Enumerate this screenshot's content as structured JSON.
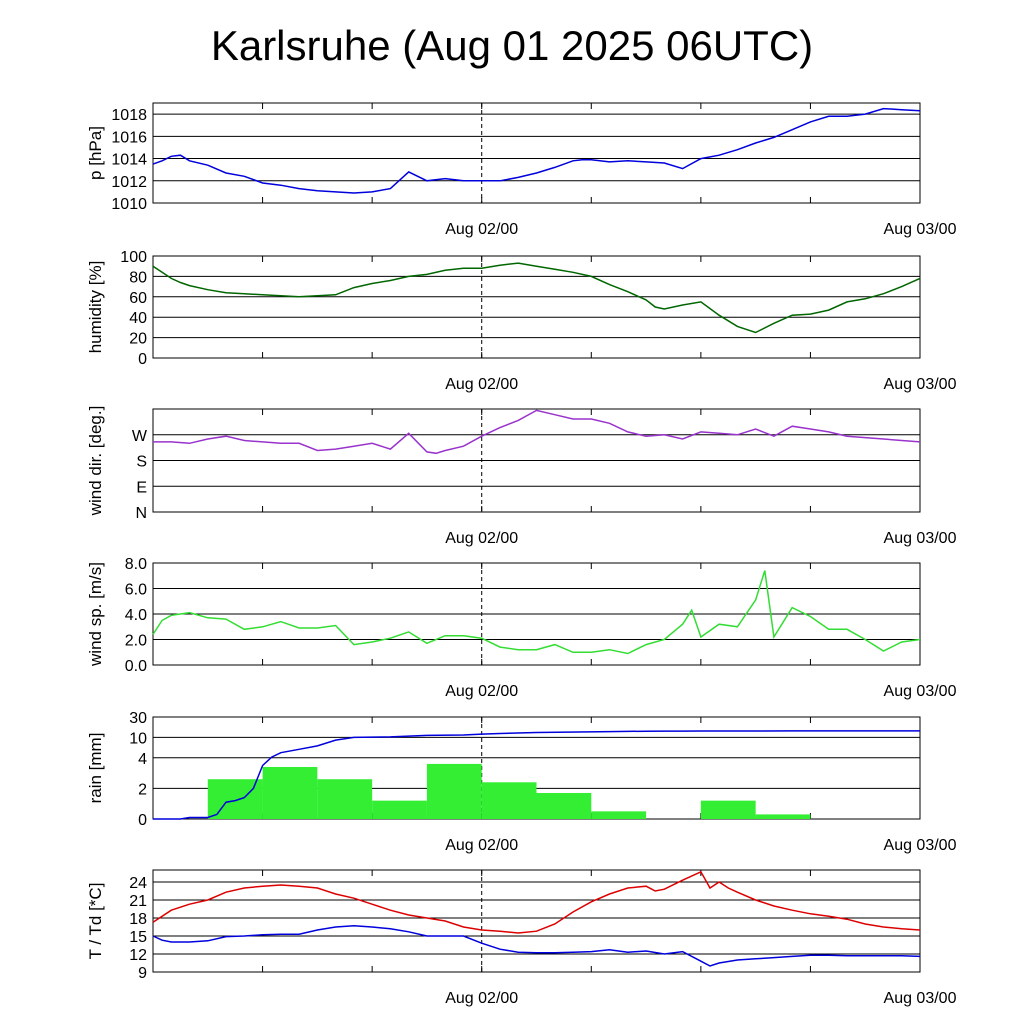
{
  "title": "Karlsruhe (Aug 01 2025 06UTC)",
  "chart_data": [
    {
      "type": "line",
      "ylabel": "p [hPa]",
      "x_ticks": [
        "Aug 02/00",
        "Aug 03/00"
      ],
      "ylim": [
        1010,
        1019
      ],
      "y_ticks": [
        "1010",
        "1012",
        "1014",
        "1016",
        "1018"
      ],
      "grid": true,
      "series": [
        {
          "color": "#0000dd",
          "x": [
            0,
            1,
            2,
            3,
            4,
            6,
            8,
            10,
            12,
            14,
            16,
            18,
            20,
            22,
            24,
            26,
            28,
            30,
            32,
            34,
            36,
            38,
            40,
            42,
            44,
            46,
            47,
            48,
            50,
            52,
            54,
            56,
            58,
            60,
            62,
            64,
            66,
            68,
            70,
            72,
            74,
            76,
            78,
            80,
            82,
            84
          ],
          "values": [
            1013.5,
            1013.8,
            1014.2,
            1014.3,
            1013.8,
            1013.4,
            1012.7,
            1012.4,
            1011.8,
            1011.6,
            1011.3,
            1011.1,
            1011.0,
            1010.9,
            1011.0,
            1011.3,
            1012.8,
            1012.0,
            1012.2,
            1012.0,
            1012.0,
            1012.0,
            1012.3,
            1012.7,
            1013.2,
            1013.8,
            1013.9,
            1013.9,
            1013.7,
            1013.8,
            1013.7,
            1013.6,
            1013.1,
            1014.0,
            1014.3,
            1014.8,
            1015.4,
            1015.9,
            1016.6,
            1017.3,
            1017.8,
            1017.8,
            1018.0,
            1018.5,
            1018.4,
            1018.3
          ]
        }
      ]
    },
    {
      "type": "line",
      "ylabel": "humidity [%]",
      "x_ticks": [
        "Aug 02/00",
        "Aug 03/00"
      ],
      "ylim": [
        0,
        100
      ],
      "y_ticks": [
        "0",
        "20",
        "40",
        "60",
        "80",
        "100"
      ],
      "grid": true,
      "series": [
        {
          "color": "#006600",
          "x": [
            0,
            1,
            2,
            3,
            4,
            6,
            8,
            10,
            12,
            14,
            16,
            18,
            20,
            22,
            24,
            26,
            28,
            30,
            32,
            34,
            36,
            38,
            40,
            42,
            44,
            46,
            48,
            50,
            52,
            54,
            55,
            56,
            58,
            60,
            62,
            64,
            66,
            68,
            70,
            72,
            74,
            76,
            78,
            80,
            82,
            84
          ],
          "values": [
            90,
            84,
            78,
            74,
            71,
            67,
            64,
            63,
            62,
            61,
            60,
            61,
            62,
            69,
            73,
            76,
            80,
            82,
            86,
            88,
            88,
            91,
            93,
            90,
            87,
            84,
            80,
            72,
            65,
            57,
            50,
            48,
            52,
            55,
            42,
            31,
            25,
            34,
            42,
            43,
            47,
            55,
            58,
            63,
            70,
            78
          ]
        }
      ]
    },
    {
      "type": "scatter",
      "ylabel": "wind dir. [deg.]",
      "x_ticks": [
        "Aug 02/00",
        "Aug 03/00"
      ],
      "ylim": [
        0,
        360
      ],
      "y_ticks": [
        "N",
        "E",
        "S",
        "W"
      ],
      "grid": true,
      "series": [
        {
          "color": "#9933cc",
          "x": [
            0,
            2,
            4,
            6,
            8,
            10,
            12,
            14,
            16,
            18,
            20,
            22,
            24,
            26,
            28,
            30,
            31,
            32,
            34,
            36,
            38,
            40,
            42,
            44,
            46,
            48,
            50,
            52,
            54,
            56,
            58,
            60,
            62,
            64,
            66,
            68,
            70,
            72,
            74,
            76,
            78,
            80,
            82,
            84
          ],
          "values": [
            245,
            245,
            240,
            255,
            265,
            250,
            245,
            240,
            240,
            215,
            220,
            230,
            240,
            220,
            275,
            210,
            205,
            215,
            230,
            265,
            295,
            320,
            355,
            340,
            325,
            325,
            310,
            280,
            265,
            270,
            255,
            280,
            275,
            270,
            290,
            265,
            300,
            290,
            280,
            265,
            260,
            255,
            250,
            245
          ]
        }
      ]
    },
    {
      "type": "line",
      "ylabel": "wind sp. [m/s]",
      "x_ticks": [
        "Aug 02/00",
        "Aug 03/00"
      ],
      "ylim": [
        0,
        8
      ],
      "y_ticks": [
        "0.0",
        "2.0",
        "4.0",
        "6.0",
        "8.0"
      ],
      "grid": true,
      "series": [
        {
          "color": "#33dd33",
          "x": [
            0,
            1,
            2,
            4,
            6,
            8,
            10,
            12,
            14,
            16,
            18,
            20,
            22,
            24,
            26,
            28,
            30,
            32,
            34,
            36,
            38,
            40,
            42,
            44,
            46,
            48,
            50,
            52,
            54,
            56,
            58,
            59,
            60,
            62,
            64,
            66,
            67,
            68,
            70,
            72,
            74,
            76,
            78,
            80,
            82,
            84
          ],
          "values": [
            2.4,
            3.5,
            3.9,
            4.1,
            3.7,
            3.6,
            2.8,
            3.0,
            3.4,
            2.9,
            2.9,
            3.1,
            1.6,
            1.8,
            2.1,
            2.6,
            1.7,
            2.3,
            2.3,
            2.1,
            1.4,
            1.2,
            1.2,
            1.6,
            1.0,
            1.0,
            1.2,
            0.9,
            1.6,
            2.0,
            3.2,
            4.3,
            2.2,
            3.2,
            3.0,
            5.1,
            7.4,
            2.2,
            4.5,
            3.8,
            2.8,
            2.8,
            2.0,
            1.1,
            1.8,
            2.0
          ]
        }
      ]
    },
    {
      "type": "bar",
      "ylabel": "rain [mm]",
      "x_ticks": [
        "Aug 02/00",
        "Aug 03/00"
      ],
      "y_ticks": [
        "0",
        "2",
        "4",
        "10",
        "30"
      ],
      "grid": true,
      "series": [
        {
          "color": "#33ee33",
          "x": [
            9,
            15,
            21,
            27,
            33,
            39,
            45,
            51,
            57,
            63,
            69,
            75,
            81
          ],
          "values": [
            2.6,
            3.4,
            2.6,
            1.2,
            3.6,
            2.4,
            1.7,
            0.5,
            0,
            1.2,
            0.3,
            0,
            0
          ]
        },
        {
          "color": "#0000dd",
          "type": "line",
          "x": [
            0,
            2,
            3,
            4,
            5,
            6,
            7,
            8,
            9,
            10,
            11,
            12,
            13,
            14,
            16,
            18,
            20,
            22,
            24,
            26,
            30,
            34,
            36,
            38,
            42,
            50,
            54,
            56,
            58,
            60,
            66,
            70,
            76,
            84
          ],
          "values": [
            0,
            0,
            0,
            0.1,
            0.1,
            0.1,
            0.3,
            1.1,
            1.2,
            1.4,
            2.0,
            3.5,
            4.2,
            5.5,
            6.5,
            7.5,
            9.2,
            10.0,
            10.3,
            10.5,
            12.0,
            12.4,
            13.2,
            13.8,
            14.8,
            15.7,
            16.1,
            16.2,
            16.2,
            16.3,
            16.3,
            16.4,
            16.4,
            16.4
          ]
        }
      ]
    },
    {
      "type": "line",
      "ylabel": "T / Td [*C]",
      "x_ticks": [
        "Aug 02/00",
        "Aug 03/00"
      ],
      "ylim": [
        9,
        26
      ],
      "y_ticks": [
        "9",
        "12",
        "15",
        "18",
        "21",
        "24"
      ],
      "grid": true,
      "series": [
        {
          "color": "#dd0000",
          "x": [
            0,
            2,
            4,
            6,
            8,
            10,
            12,
            14,
            16,
            18,
            20,
            22,
            24,
            26,
            28,
            30,
            32,
            34,
            36,
            38,
            40,
            42,
            44,
            46,
            48,
            50,
            52,
            54,
            55,
            56,
            58,
            60,
            61,
            62,
            63,
            64,
            66,
            68,
            70,
            72,
            74,
            76,
            78,
            80,
            82,
            84
          ],
          "values": [
            17.3,
            19.3,
            20.3,
            21.0,
            22.3,
            23.0,
            23.3,
            23.5,
            23.3,
            23.0,
            22.0,
            21.3,
            20.3,
            19.3,
            18.5,
            18.0,
            17.5,
            16.5,
            16.0,
            15.8,
            15.5,
            15.8,
            17.0,
            19.0,
            20.7,
            22.0,
            23.0,
            23.3,
            22.5,
            22.8,
            24.3,
            25.7,
            23.0,
            24.0,
            23.0,
            22.3,
            21.0,
            20.0,
            19.3,
            18.7,
            18.3,
            17.8,
            17.0,
            16.5,
            16.2,
            16.0
          ]
        },
        {
          "color": "#0000dd",
          "x": [
            0,
            1,
            2,
            4,
            6,
            8,
            10,
            12,
            14,
            16,
            18,
            20,
            22,
            24,
            26,
            28,
            30,
            32,
            34,
            36,
            38,
            40,
            42,
            44,
            46,
            48,
            50,
            52,
            54,
            56,
            58,
            60,
            61,
            62,
            64,
            66,
            68,
            70,
            72,
            74,
            76,
            78,
            80,
            82,
            84
          ],
          "values": [
            15.0,
            14.3,
            14.0,
            14.0,
            14.2,
            14.9,
            15.0,
            15.2,
            15.3,
            15.3,
            16.0,
            16.5,
            16.7,
            16.5,
            16.2,
            15.7,
            15.0,
            15.0,
            15.0,
            13.8,
            12.8,
            12.3,
            12.2,
            12.2,
            12.3,
            12.4,
            12.7,
            12.3,
            12.5,
            12.0,
            12.4,
            10.8,
            10.0,
            10.5,
            11.0,
            11.2,
            11.4,
            11.6,
            11.8,
            11.8,
            11.7,
            11.7,
            11.7,
            11.7,
            11.6
          ]
        }
      ]
    }
  ]
}
